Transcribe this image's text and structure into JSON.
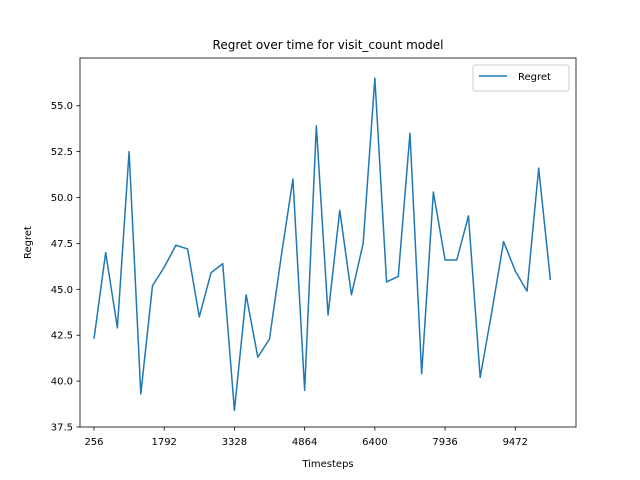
{
  "chart_data": {
    "type": "line",
    "title": "Regret over time for visit_count model",
    "xlabel": "Timesteps",
    "ylabel": "Regret",
    "xlim": [
      -50,
      10800
    ],
    "ylim": [
      37.5,
      57.6
    ],
    "xticks": [
      256,
      1792,
      3328,
      4864,
      6400,
      7936,
      9472
    ],
    "yticks": [
      37.5,
      40.0,
      42.5,
      45.0,
      47.5,
      50.0,
      52.5,
      55.0
    ],
    "grid": false,
    "legend_position": "top-right",
    "series": [
      {
        "name": "Regret",
        "color": "#1f77b4",
        "x": [
          256,
          512,
          768,
          1024,
          1280,
          1536,
          1792,
          2048,
          2304,
          2560,
          2816,
          3072,
          3328,
          3584,
          3840,
          4096,
          4352,
          4608,
          4864,
          5120,
          5376,
          5632,
          5888,
          6144,
          6400,
          6656,
          6912,
          7168,
          7424,
          7680,
          7936,
          8192,
          8448,
          8704,
          8960,
          9216,
          9472,
          9728,
          9984,
          10240
        ],
        "y": [
          42.3,
          47.0,
          42.9,
          52.5,
          39.3,
          45.2,
          46.2,
          47.4,
          47.2,
          43.5,
          45.9,
          46.4,
          38.4,
          44.7,
          41.3,
          42.3,
          46.8,
          51.0,
          39.5,
          53.9,
          43.6,
          49.3,
          44.7,
          47.5,
          56.5,
          45.4,
          45.7,
          53.5,
          40.4,
          50.3,
          46.6,
          46.6,
          49.0,
          40.2,
          43.8,
          47.6,
          46.0,
          44.9,
          51.6,
          45.5
        ]
      }
    ]
  }
}
